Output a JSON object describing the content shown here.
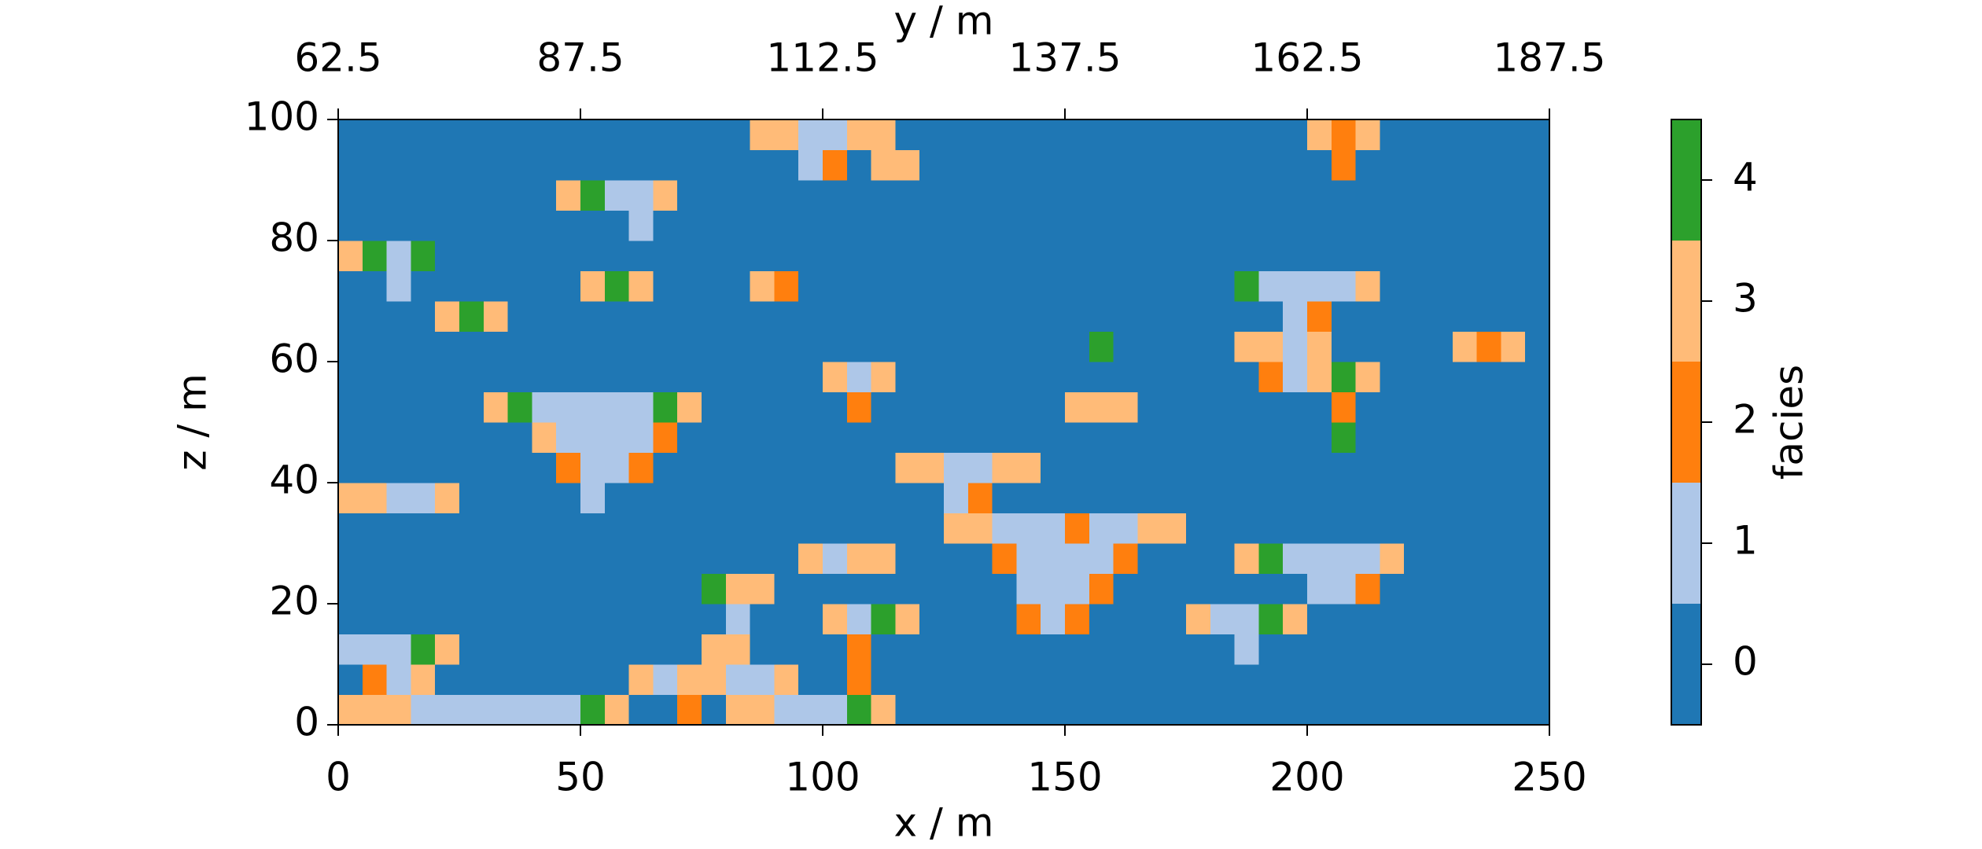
{
  "chart_data": {
    "type": "heatmap",
    "x_label": "x / m",
    "y_label": "z / m",
    "x2_label": "y / m",
    "xlim": [
      0,
      250
    ],
    "xticks": [
      0,
      50,
      100,
      150,
      200,
      250
    ],
    "ylim": [
      0,
      100
    ],
    "yticks": [
      0,
      20,
      40,
      60,
      80,
      100
    ],
    "x2lim": [
      62.5,
      187.5
    ],
    "x2ticks": [
      62.5,
      87.5,
      112.5,
      137.5,
      162.5,
      187.5
    ],
    "colorbar": {
      "label": "facies",
      "lim": [
        -0.5,
        4.5
      ],
      "ticks": [
        0,
        1,
        2,
        3,
        4
      ],
      "colors": [
        "#1f77b4",
        "#aec7e8",
        "#ff7f0e",
        "#ffbb78",
        "#2ca02c"
      ]
    },
    "values": [
      [
        3,
        3,
        3,
        1,
        1,
        1,
        1,
        1,
        1,
        1,
        4,
        3,
        0,
        0,
        2,
        0,
        3,
        3,
        1,
        1,
        1,
        4,
        3,
        0,
        0,
        0,
        0,
        0,
        0,
        0,
        0,
        0,
        0,
        0,
        0,
        0,
        0,
        0,
        0,
        0,
        0,
        0,
        0,
        0,
        0,
        0,
        0,
        0,
        0,
        0
      ],
      [
        0,
        2,
        1,
        3,
        0,
        0,
        0,
        0,
        0,
        0,
        0,
        0,
        3,
        1,
        3,
        3,
        1,
        1,
        3,
        0,
        0,
        2,
        0,
        0,
        0,
        0,
        0,
        0,
        0,
        0,
        0,
        0,
        0,
        0,
        0,
        0,
        0,
        0,
        0,
        0,
        0,
        0,
        0,
        0,
        0,
        0,
        0,
        0,
        0,
        0
      ],
      [
        1,
        1,
        1,
        4,
        3,
        0,
        0,
        0,
        0,
        0,
        0,
        0,
        0,
        0,
        0,
        3,
        3,
        0,
        0,
        0,
        0,
        2,
        0,
        0,
        0,
        0,
        0,
        0,
        0,
        0,
        0,
        0,
        0,
        0,
        0,
        0,
        0,
        1,
        0,
        0,
        0,
        0,
        0,
        0,
        0,
        0,
        0,
        0,
        0,
        0
      ],
      [
        0,
        0,
        0,
        0,
        0,
        0,
        0,
        0,
        0,
        0,
        0,
        0,
        0,
        0,
        0,
        0,
        1,
        0,
        0,
        0,
        3,
        1,
        4,
        3,
        0,
        0,
        0,
        0,
        2,
        1,
        2,
        0,
        0,
        0,
        0,
        3,
        1,
        1,
        4,
        3,
        0,
        0,
        0,
        0,
        0,
        0,
        0,
        0,
        0,
        0
      ],
      [
        0,
        0,
        0,
        0,
        0,
        0,
        0,
        0,
        0,
        0,
        0,
        0,
        0,
        0,
        0,
        4,
        3,
        3,
        0,
        0,
        0,
        0,
        0,
        0,
        0,
        0,
        0,
        0,
        1,
        1,
        1,
        2,
        0,
        0,
        0,
        0,
        0,
        0,
        0,
        0,
        1,
        1,
        2,
        0,
        0,
        0,
        0,
        0,
        0,
        0
      ],
      [
        0,
        0,
        0,
        0,
        0,
        0,
        0,
        0,
        0,
        0,
        0,
        0,
        0,
        0,
        0,
        0,
        0,
        0,
        0,
        3,
        1,
        3,
        3,
        0,
        0,
        0,
        0,
        2,
        1,
        1,
        1,
        1,
        2,
        0,
        0,
        0,
        0,
        3,
        4,
        1,
        1,
        1,
        1,
        3,
        0,
        0,
        0,
        0,
        0,
        0
      ],
      [
        0,
        0,
        0,
        0,
        0,
        0,
        0,
        0,
        0,
        0,
        0,
        0,
        0,
        0,
        0,
        0,
        0,
        0,
        0,
        0,
        0,
        0,
        0,
        0,
        0,
        3,
        3,
        1,
        1,
        1,
        2,
        1,
        1,
        3,
        3,
        0,
        0,
        0,
        0,
        0,
        0,
        0,
        0,
        0,
        0,
        0,
        0,
        0,
        0,
        0
      ],
      [
        3,
        3,
        1,
        1,
        3,
        0,
        0,
        0,
        0,
        0,
        1,
        0,
        0,
        0,
        0,
        0,
        0,
        0,
        0,
        0,
        0,
        0,
        0,
        0,
        0,
        1,
        2,
        0,
        0,
        0,
        0,
        0,
        0,
        0,
        0,
        0,
        0,
        0,
        0,
        0,
        0,
        0,
        0,
        0,
        0,
        0,
        0,
        0,
        0,
        0
      ],
      [
        0,
        0,
        0,
        0,
        0,
        0,
        0,
        0,
        0,
        2,
        1,
        1,
        2,
        0,
        0,
        0,
        0,
        0,
        0,
        0,
        0,
        0,
        0,
        3,
        3,
        1,
        1,
        3,
        3,
        0,
        0,
        0,
        0,
        0,
        0,
        0,
        0,
        0,
        0,
        0,
        0,
        0,
        0,
        0,
        0,
        0,
        0,
        0,
        0,
        0
      ],
      [
        0,
        0,
        0,
        0,
        0,
        0,
        0,
        0,
        3,
        1,
        1,
        1,
        1,
        2,
        0,
        0,
        0,
        0,
        0,
        0,
        0,
        0,
        0,
        0,
        0,
        0,
        0,
        0,
        0,
        0,
        0,
        0,
        0,
        0,
        0,
        0,
        0,
        0,
        0,
        0,
        0,
        4,
        0,
        0,
        0,
        0,
        0,
        0,
        0,
        0
      ],
      [
        0,
        0,
        0,
        0,
        0,
        0,
        3,
        4,
        1,
        1,
        1,
        1,
        1,
        4,
        3,
        0,
        0,
        0,
        0,
        0,
        0,
        2,
        0,
        0,
        0,
        0,
        0,
        0,
        0,
        0,
        3,
        3,
        3,
        0,
        0,
        0,
        0,
        0,
        0,
        0,
        0,
        2,
        0,
        0,
        0,
        0,
        0,
        0,
        0,
        0
      ],
      [
        0,
        0,
        0,
        0,
        0,
        0,
        0,
        0,
        0,
        0,
        0,
        0,
        0,
        0,
        0,
        0,
        0,
        0,
        0,
        0,
        3,
        1,
        3,
        0,
        0,
        0,
        0,
        0,
        0,
        0,
        0,
        0,
        0,
        0,
        0,
        0,
        0,
        0,
        2,
        1,
        3,
        4,
        3,
        0,
        0,
        0,
        0,
        0,
        0,
        0
      ],
      [
        0,
        0,
        0,
        0,
        0,
        0,
        0,
        0,
        0,
        0,
        0,
        0,
        0,
        0,
        0,
        0,
        0,
        0,
        0,
        0,
        0,
        0,
        0,
        0,
        0,
        0,
        0,
        0,
        0,
        0,
        0,
        4,
        0,
        0,
        0,
        0,
        0,
        3,
        3,
        1,
        3,
        0,
        0,
        0,
        0,
        0,
        3,
        2,
        3,
        0
      ],
      [
        0,
        0,
        0,
        0,
        3,
        4,
        3,
        0,
        0,
        0,
        0,
        0,
        0,
        0,
        0,
        0,
        0,
        0,
        0,
        0,
        0,
        0,
        0,
        0,
        0,
        0,
        0,
        0,
        0,
        0,
        0,
        0,
        0,
        0,
        0,
        0,
        0,
        0,
        0,
        1,
        2,
        0,
        0,
        0,
        0,
        0,
        0,
        0,
        0,
        0
      ],
      [
        0,
        0,
        1,
        0,
        0,
        0,
        0,
        0,
        0,
        0,
        3,
        4,
        3,
        0,
        0,
        0,
        0,
        3,
        2,
        0,
        0,
        0,
        0,
        0,
        0,
        0,
        0,
        0,
        0,
        0,
        0,
        0,
        0,
        0,
        0,
        0,
        0,
        4,
        1,
        1,
        1,
        1,
        3,
        0,
        0,
        0,
        0,
        0,
        0,
        0
      ],
      [
        3,
        4,
        1,
        4,
        0,
        0,
        0,
        0,
        0,
        0,
        0,
        0,
        0,
        0,
        0,
        0,
        0,
        0,
        0,
        0,
        0,
        0,
        0,
        0,
        0,
        0,
        0,
        0,
        0,
        0,
        0,
        0,
        0,
        0,
        0,
        0,
        0,
        0,
        0,
        0,
        0,
        0,
        0,
        0,
        0,
        0,
        0,
        0,
        0,
        0
      ],
      [
        0,
        0,
        0,
        0,
        0,
        0,
        0,
        0,
        0,
        0,
        0,
        0,
        1,
        0,
        0,
        0,
        0,
        0,
        0,
        0,
        0,
        0,
        0,
        0,
        0,
        0,
        0,
        0,
        0,
        0,
        0,
        0,
        0,
        0,
        0,
        0,
        0,
        0,
        0,
        0,
        0,
        0,
        0,
        0,
        0,
        0,
        0,
        0,
        0,
        0
      ],
      [
        0,
        0,
        0,
        0,
        0,
        0,
        0,
        0,
        0,
        3,
        4,
        1,
        1,
        3,
        0,
        0,
        0,
        0,
        0,
        0,
        0,
        0,
        0,
        0,
        0,
        0,
        0,
        0,
        0,
        0,
        0,
        0,
        0,
        0,
        0,
        0,
        0,
        0,
        0,
        0,
        0,
        0,
        0,
        0,
        0,
        0,
        0,
        0,
        0,
        0
      ],
      [
        0,
        0,
        0,
        0,
        0,
        0,
        0,
        0,
        0,
        0,
        0,
        0,
        0,
        0,
        0,
        0,
        0,
        0,
        0,
        1,
        2,
        0,
        3,
        3,
        0,
        0,
        0,
        0,
        0,
        0,
        0,
        0,
        0,
        0,
        0,
        0,
        0,
        0,
        0,
        0,
        0,
        2,
        0,
        0,
        0,
        0,
        0,
        0,
        0,
        0
      ],
      [
        0,
        0,
        0,
        0,
        0,
        0,
        0,
        0,
        0,
        0,
        0,
        0,
        0,
        0,
        0,
        0,
        0,
        3,
        3,
        1,
        1,
        3,
        3,
        0,
        0,
        0,
        0,
        0,
        0,
        0,
        0,
        0,
        0,
        0,
        0,
        0,
        0,
        0,
        0,
        0,
        3,
        2,
        3,
        0,
        0,
        0,
        0,
        0,
        0,
        0
      ]
    ]
  }
}
